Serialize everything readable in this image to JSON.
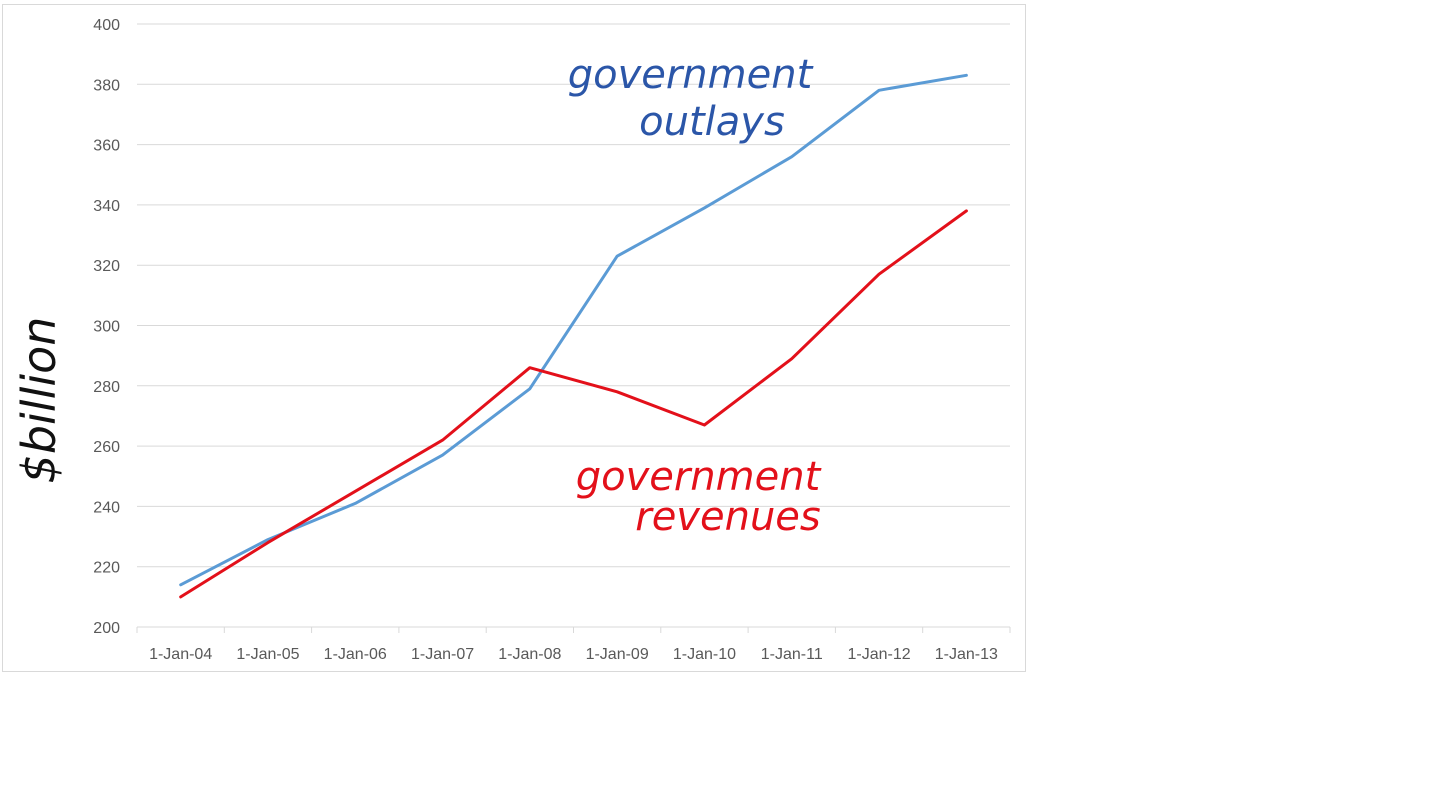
{
  "chart_data": {
    "type": "line",
    "x": [
      "1-Jan-04",
      "1-Jan-05",
      "1-Jan-06",
      "1-Jan-07",
      "1-Jan-08",
      "1-Jan-09",
      "1-Jan-10",
      "1-Jan-11",
      "1-Jan-12",
      "1-Jan-13"
    ],
    "series": [
      {
        "name": "government outlays",
        "color": "#5b9bd5",
        "values": [
          214,
          229,
          241,
          257,
          279,
          323,
          339,
          356,
          378,
          383
        ]
      },
      {
        "name": "government revenues",
        "color": "#e3101a",
        "values": [
          210,
          228,
          245,
          262,
          286,
          278,
          267,
          289,
          317,
          338
        ]
      }
    ],
    "ylabel": "$billion",
    "ylim": [
      200,
      400
    ],
    "yticks": [
      "200",
      "220",
      "240",
      "260",
      "280",
      "300",
      "320",
      "340",
      "360",
      "380",
      "400"
    ],
    "grid": true,
    "legend": "none",
    "annotations": [
      {
        "text_line1": "government",
        "text_line2": "outlays",
        "color": "#2b56a8"
      },
      {
        "text_line1": "government",
        "text_line2": "revenues",
        "color": "#e3101a"
      }
    ]
  }
}
